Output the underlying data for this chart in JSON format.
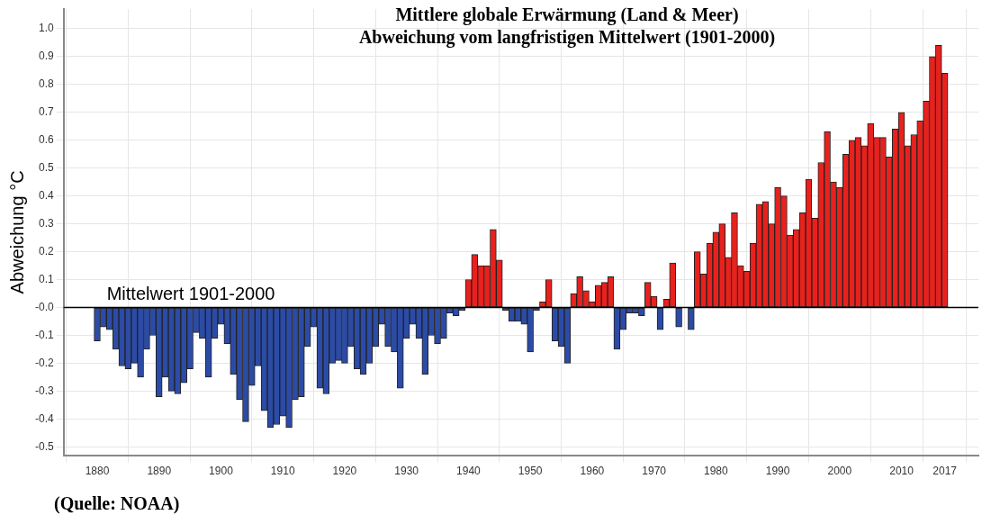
{
  "chart_data": {
    "type": "bar",
    "title": "Mittlere globale Erwärmung (Land & Meer)\nAbweichung vom langfristigen Mittelwert (1901-2000)",
    "ylabel": "Abweichung °C",
    "annotations": [
      "(Quelle: NOAA)"
    ],
    "x": [
      1880,
      1881,
      1882,
      1883,
      1884,
      1885,
      1886,
      1887,
      1888,
      1889,
      1890,
      1891,
      1892,
      1893,
      1894,
      1895,
      1896,
      1897,
      1898,
      1899,
      1900,
      1901,
      1902,
      1903,
      1904,
      1905,
      1906,
      1907,
      1908,
      1909,
      1910,
      1911,
      1912,
      1913,
      1914,
      1915,
      1916,
      1917,
      1918,
      1919,
      1920,
      1921,
      1922,
      1923,
      1924,
      1925,
      1926,
      1927,
      1928,
      1929,
      1930,
      1931,
      1932,
      1933,
      1934,
      1935,
      1936,
      1937,
      1938,
      1939,
      1940,
      1941,
      1942,
      1943,
      1944,
      1945,
      1946,
      1947,
      1948,
      1949,
      1950,
      1951,
      1952,
      1953,
      1954,
      1955,
      1956,
      1957,
      1958,
      1959,
      1960,
      1961,
      1962,
      1963,
      1964,
      1965,
      1966,
      1967,
      1968,
      1969,
      1970,
      1971,
      1972,
      1973,
      1974,
      1975,
      1976,
      1977,
      1978,
      1979,
      1980,
      1981,
      1982,
      1983,
      1984,
      1985,
      1986,
      1987,
      1988,
      1989,
      1990,
      1991,
      1992,
      1993,
      1994,
      1995,
      1996,
      1997,
      1998,
      1999,
      2000,
      2001,
      2002,
      2003,
      2004,
      2005,
      2006,
      2007,
      2008,
      2009,
      2010,
      2011,
      2012,
      2013,
      2014,
      2015,
      2016,
      2017
    ],
    "values": [
      -0.12,
      -0.07,
      -0.08,
      -0.15,
      -0.21,
      -0.22,
      -0.2,
      -0.25,
      -0.15,
      -0.1,
      -0.32,
      -0.25,
      -0.3,
      -0.31,
      -0.27,
      -0.22,
      -0.09,
      -0.11,
      -0.25,
      -0.11,
      -0.06,
      -0.13,
      -0.24,
      -0.33,
      -0.41,
      -0.28,
      -0.21,
      -0.37,
      -0.43,
      -0.42,
      -0.39,
      -0.43,
      -0.33,
      -0.32,
      -0.14,
      -0.07,
      -0.29,
      -0.31,
      -0.2,
      -0.19,
      -0.2,
      -0.14,
      -0.22,
      -0.24,
      -0.2,
      -0.14,
      -0.06,
      -0.14,
      -0.16,
      -0.29,
      -0.11,
      -0.06,
      -0.11,
      -0.24,
      -0.1,
      -0.13,
      -0.11,
      -0.02,
      -0.03,
      -0.01,
      0.1,
      0.19,
      0.15,
      0.15,
      0.28,
      0.17,
      -0.01,
      -0.05,
      -0.05,
      -0.06,
      -0.16,
      -0.01,
      0.02,
      0.1,
      -0.12,
      -0.14,
      -0.2,
      0.05,
      0.11,
      0.06,
      0.02,
      0.08,
      0.09,
      0.11,
      -0.15,
      -0.08,
      -0.02,
      -0.02,
      -0.03,
      0.09,
      0.04,
      -0.08,
      0.03,
      0.16,
      -0.07,
      0.0,
      -0.08,
      0.2,
      0.12,
      0.23,
      0.27,
      0.3,
      0.18,
      0.34,
      0.15,
      0.13,
      0.23,
      0.37,
      0.38,
      0.3,
      0.43,
      0.4,
      0.26,
      0.28,
      0.34,
      0.46,
      0.32,
      0.52,
      0.63,
      0.45,
      0.43,
      0.55,
      0.6,
      0.61,
      0.58,
      0.66,
      0.61,
      0.61,
      0.54,
      0.64,
      0.7,
      0.58,
      0.62,
      0.67,
      0.74,
      0.9,
      0.94,
      0.84
    ],
    "colors": [
      "#2b4ba6",
      "#2b4ba6",
      "#2b4ba6",
      "#2b4ba6",
      "#2b4ba6",
      "#2b4ba6",
      "#2b4ba6",
      "#2b4ba6",
      "#2b4ba6",
      "#2b4ba6",
      "#2b4ba6",
      "#2b4ba6",
      "#2b4ba6",
      "#2b4ba6",
      "#2b4ba6",
      "#2b4ba6",
      "#2b4ba6",
      "#2b4ba6",
      "#2b4ba6",
      "#2b4ba6",
      "#2b4ba6",
      "#2b4ba6",
      "#2b4ba6",
      "#2b4ba6",
      "#2b4ba6",
      "#2b4ba6",
      "#2b4ba6",
      "#2b4ba6",
      "#2b4ba6",
      "#2b4ba6",
      "#2b4ba6",
      "#2b4ba6",
      "#2b4ba6",
      "#2b4ba6",
      "#2b4ba6",
      "#2b4ba6",
      "#2b4ba6",
      "#2b4ba6",
      "#2b4ba6",
      "#2b4ba6",
      "#2b4ba6",
      "#2b4ba6",
      "#2b4ba6",
      "#2b4ba6",
      "#2b4ba6",
      "#2b4ba6",
      "#2b4ba6",
      "#2b4ba6",
      "#2b4ba6",
      "#2b4ba6",
      "#2b4ba6",
      "#2b4ba6",
      "#2b4ba6",
      "#2b4ba6",
      "#2b4ba6",
      "#2b4ba6",
      "#2b4ba6",
      "#2b4ba6",
      "#2b4ba6",
      "#2b4ba6",
      "#e8211d",
      "#e8211d",
      "#e8211d",
      "#e8211d",
      "#e8211d",
      "#e8211d",
      "#2b4ba6",
      "#2b4ba6",
      "#2b4ba6",
      "#2b4ba6",
      "#2b4ba6",
      "#2b4ba6",
      "#e8211d",
      "#e8211d",
      "#2b4ba6",
      "#2b4ba6",
      "#2b4ba6",
      "#e8211d",
      "#e8211d",
      "#e8211d",
      "#e8211d",
      "#e8211d",
      "#e8211d",
      "#e8211d",
      "#2b4ba6",
      "#2b4ba6",
      "#2b4ba6",
      "#2b4ba6",
      "#2b4ba6",
      "#e8211d",
      "#e8211d",
      "#2b4ba6",
      "#e8211d",
      "#e8211d",
      "#2b4ba6",
      "#2b4ba6",
      "#2b4ba6",
      "#e8211d",
      "#e8211d",
      "#e8211d",
      "#e8211d",
      "#e8211d",
      "#e8211d",
      "#e8211d",
      "#e8211d",
      "#e8211d",
      "#e8211d",
      "#e8211d",
      "#e8211d",
      "#e8211d",
      "#e8211d",
      "#e8211d",
      "#e8211d",
      "#e8211d",
      "#e8211d",
      "#e8211d",
      "#e8211d",
      "#e8211d",
      "#e8211d",
      "#e8211d",
      "#e8211d",
      "#e8211d",
      "#e8211d",
      "#e8211d",
      "#e8211d",
      "#e8211d",
      "#e8211d",
      "#e8211d",
      "#e8211d",
      "#e8211d",
      "#e8211d",
      "#e8211d",
      "#e8211d",
      "#e8211d",
      "#e8211d",
      "#e8211d",
      "#e8211d",
      "#e8211d"
    ],
    "xlim": [
      1879.5,
      2017.5
    ],
    "xticks": [
      1880,
      1890,
      1900,
      1910,
      1920,
      1930,
      1940,
      1950,
      1960,
      1970,
      1980,
      1990,
      2000,
      2010,
      2017
    ],
    "ylim": [
      -0.53,
      1.07
    ],
    "yticks": [
      {
        "value": 1.0,
        "label": "1.0"
      },
      0.9,
      0.8,
      0.7,
      0.6,
      0.5,
      0.4,
      0.3,
      0.2,
      0.1,
      {
        "value": 0,
        "label": "-0.0"
      },
      -0.1,
      -0.2,
      -0.3,
      -0.4,
      -0.5
    ],
    "ref_lines": [
      {
        "axis": "y",
        "value": 0,
        "label": "Mittelwert 1901-2000",
        "color": "#000000"
      }
    ],
    "grid": true,
    "legend": false
  }
}
